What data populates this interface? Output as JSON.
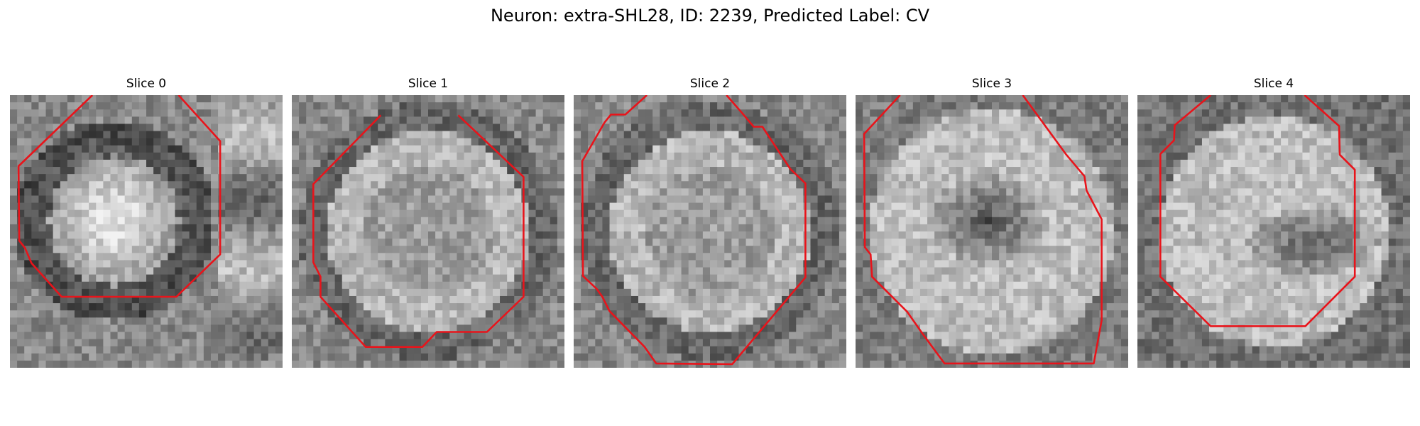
{
  "figure": {
    "title": "Neuron: extra-SHL28, ID: 2239, Predicted Label: CV"
  },
  "colors": {
    "background": "#ffffff",
    "contour": "#e8141b",
    "pixel_dark": "#1e1e1e",
    "pixel_light": "#f2f2f2"
  },
  "slices": [
    {
      "title": "Slice 0",
      "pattern": "bright-blob",
      "contour": [
        [
          11.5,
          0
        ],
        [
          1.2,
          9.9
        ],
        [
          1.3,
          20.3
        ],
        [
          2.1,
          21.3
        ],
        [
          3,
          23.4
        ],
        [
          7.2,
          28.1
        ],
        [
          23.2,
          28.1
        ],
        [
          29.3,
          22.2
        ],
        [
          29.3,
          6.4
        ],
        [
          23.5,
          0
        ]
      ]
    },
    {
      "title": "Slice 1",
      "pattern": "textured-ring",
      "contour": [
        [
          12.4,
          2.8
        ],
        [
          3,
          12.4
        ],
        [
          3,
          23.3
        ],
        [
          4,
          25.3
        ],
        [
          4,
          28.1
        ],
        [
          10.3,
          35.1
        ],
        [
          18.2,
          35.1
        ],
        [
          20.2,
          33
        ],
        [
          27.2,
          33
        ],
        [
          32.3,
          28.1
        ],
        [
          32.3,
          11.4
        ],
        [
          23.2,
          2.8
        ]
      ]
    },
    {
      "title": "Slice 2",
      "pattern": "textured-ring",
      "contour": [
        [
          10.2,
          0
        ],
        [
          7.2,
          2.7
        ],
        [
          5.2,
          2.7
        ],
        [
          4.3,
          3.8
        ],
        [
          1.2,
          9.2
        ],
        [
          1.3,
          25.2
        ],
        [
          3.2,
          27
        ],
        [
          4,
          28.1
        ],
        [
          5,
          30.1
        ],
        [
          9.9,
          35.1
        ],
        [
          11.5,
          37.4
        ],
        [
          22.1,
          37.5
        ],
        [
          32.3,
          25.4
        ],
        [
          32.3,
          12.3
        ],
        [
          30.2,
          10.3
        ],
        [
          26.3,
          4.4
        ],
        [
          25.1,
          4.4
        ],
        [
          23.3,
          2.3
        ],
        [
          21.3,
          0
        ]
      ]
    },
    {
      "title": "Slice 3",
      "pattern": "dark-core",
      "contour": [
        [
          6.2,
          0
        ],
        [
          1.2,
          5.4
        ],
        [
          1.3,
          21.2
        ],
        [
          2.1,
          22.2
        ],
        [
          2.3,
          25.3
        ],
        [
          7.2,
          30.2
        ],
        [
          9.3,
          33.2
        ],
        [
          12.4,
          37.4
        ],
        [
          33.2,
          37.4
        ],
        [
          34.3,
          31.4
        ],
        [
          34.3,
          17.3
        ],
        [
          33.2,
          15.2
        ],
        [
          32.2,
          13.3
        ],
        [
          31.9,
          11.3
        ],
        [
          29.3,
          8.2
        ],
        [
          23.3,
          0
        ]
      ]
    },
    {
      "title": "Slice 4",
      "pattern": "dark-spot-offset",
      "contour": [
        [
          10.2,
          0
        ],
        [
          5.2,
          4.2
        ],
        [
          5.1,
          6.3
        ],
        [
          3.2,
          8.2
        ],
        [
          3.2,
          25.3
        ],
        [
          10.2,
          32.2
        ],
        [
          23.4,
          32.2
        ],
        [
          30.3,
          25.3
        ],
        [
          30.3,
          10.4
        ],
        [
          28.2,
          8.3
        ],
        [
          28.1,
          4.3
        ],
        [
          23.3,
          0
        ]
      ]
    }
  ]
}
